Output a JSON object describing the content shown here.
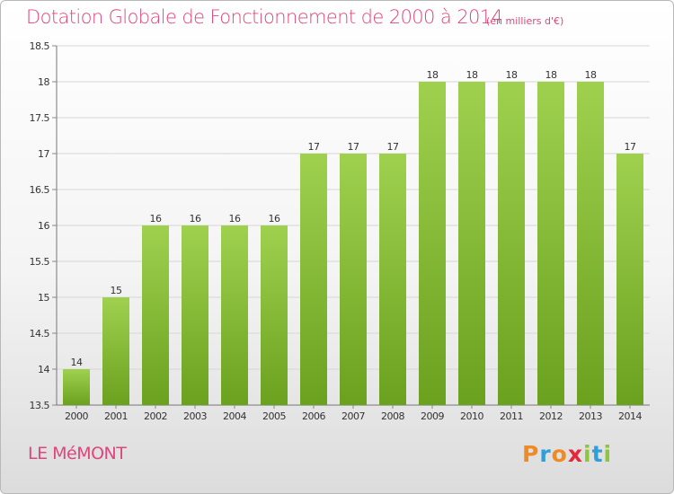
{
  "header": {
    "title": "Dotation Globale de Fonctionnement de 2000 à 2014",
    "unit": "(en milliers d'€)"
  },
  "footer": {
    "commune": "LE MéMONT",
    "logo_text": "Proxiti",
    "logo_letters": [
      {
        "ch": "P",
        "color": "#f08a24"
      },
      {
        "ch": "r",
        "color": "#2e9fd9"
      },
      {
        "ch": "o",
        "color": "#f08a24"
      },
      {
        "ch": "x",
        "color": "#e4283a"
      },
      {
        "ch": "i",
        "color": "#8cc63f"
      },
      {
        "ch": "t",
        "color": "#2e9fd9"
      },
      {
        "ch": "i",
        "color": "#8cc63f"
      }
    ]
  },
  "colors": {
    "bar_light": "#9fd14f",
    "bar_dark": "#6aa11e",
    "text_pink": "#e0457b",
    "grid": "#d6d6d6"
  },
  "chart_data": {
    "type": "bar",
    "categories": [
      "2000",
      "2001",
      "2002",
      "2003",
      "2004",
      "2005",
      "2006",
      "2007",
      "2008",
      "2009",
      "2010",
      "2011",
      "2012",
      "2013",
      "2014"
    ],
    "values": [
      14,
      15,
      16,
      16,
      16,
      16,
      17,
      17,
      17,
      18,
      18,
      18,
      18,
      18,
      17
    ],
    "ylim": [
      13.5,
      18.5
    ],
    "yticks": [
      "13.5",
      "14",
      "14.5",
      "15",
      "15.5",
      "16",
      "16.5",
      "17",
      "17.5",
      "18",
      "18.5"
    ],
    "grid": true,
    "xlabel": "",
    "ylabel": ""
  }
}
